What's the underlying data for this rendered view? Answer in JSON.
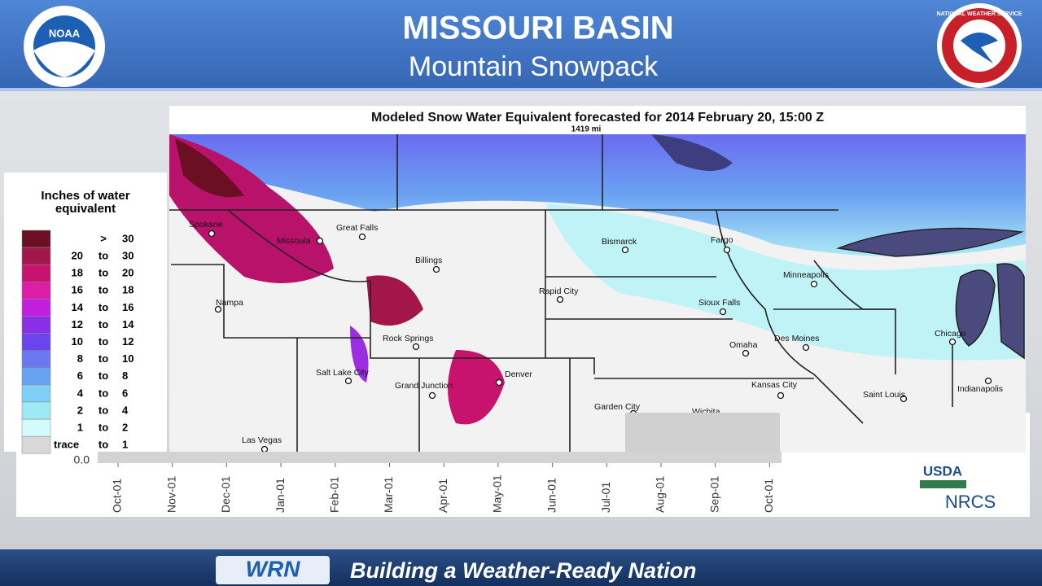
{
  "header": {
    "title": "MISSOURI BASIN",
    "subtitle": "Mountain Snowpack",
    "left_logo": "NOAA",
    "right_logo": "NATIONAL WEATHER SERVICE"
  },
  "map": {
    "title": "Modeled Snow Water Equivalent forecasted for 2014 February 20, 15:00 Z",
    "scale": "1419 mi",
    "legend": {
      "title_line1": "Inches of water",
      "title_line2": "equivalent",
      "rows": [
        {
          "sep": ">",
          "high": "30",
          "color": "#6b0f24"
        },
        {
          "low": "20",
          "sep": "to",
          "high": "30",
          "color": "#a3164a"
        },
        {
          "low": "18",
          "sep": "to",
          "high": "20",
          "color": "#c8136e"
        },
        {
          "low": "16",
          "sep": "to",
          "high": "18",
          "color": "#dd1ca8"
        },
        {
          "low": "14",
          "sep": "to",
          "high": "16",
          "color": "#c21ee0"
        },
        {
          "low": "12",
          "sep": "to",
          "high": "14",
          "color": "#8a2ee8"
        },
        {
          "low": "10",
          "sep": "to",
          "high": "12",
          "color": "#6a45ee"
        },
        {
          "low": "8",
          "sep": "to",
          "high": "10",
          "color": "#6a78f0"
        },
        {
          "low": "6",
          "sep": "to",
          "high": "8",
          "color": "#6aa2f2"
        },
        {
          "low": "4",
          "sep": "to",
          "high": "6",
          "color": "#7fcff6"
        },
        {
          "low": "2",
          "sep": "to",
          "high": "4",
          "color": "#9fe9f4"
        },
        {
          "low": "1",
          "sep": "to",
          "high": "2",
          "color": "#d2fbfb"
        },
        {
          "low": "trace",
          "sep": "to",
          "high": "1",
          "color": "#d8d8d8"
        }
      ]
    },
    "cities": [
      "Spokane",
      "Missoula",
      "Great Falls",
      "Billings",
      "Nampa",
      "Rapid City",
      "Bismarck",
      "Fargo",
      "Minneapolis",
      "Sioux Falls",
      "Rock Springs",
      "Salt Lake City",
      "Grand Junction",
      "Denver",
      "Des Moines",
      "Omaha",
      "Chicago",
      "Kansas City",
      "Saint Louis",
      "Indianapolis",
      "Garden City",
      "Wichita",
      "Las Vegas"
    ]
  },
  "underlying_chart": {
    "y_label": "0.0",
    "x_labels": [
      "Oct-01",
      "Nov-01",
      "Dec-01",
      "Jan-01",
      "Feb-01",
      "Mar-01",
      "Apr-01",
      "May-01",
      "Jun-01",
      "Jul-01",
      "Aug-01",
      "Sep-01",
      "Oct-01"
    ]
  },
  "agency": {
    "usda": "USDA",
    "nrcs": "NRCS"
  },
  "footer": {
    "logo": "WRN",
    "text": "Building a Weather-Ready Nation"
  }
}
